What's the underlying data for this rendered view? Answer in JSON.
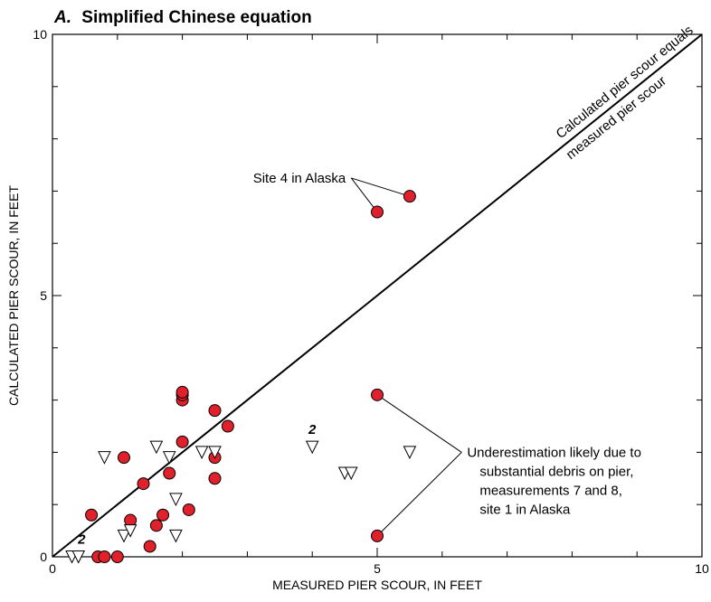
{
  "chart_data": {
    "type": "scatter",
    "title": "Simplified Chinese equation",
    "panel_letter": "A.",
    "xlabel": "MEASURED PIER SCOUR, IN FEET",
    "ylabel": "CALCULATED PIER SCOUR, IN FEET",
    "xlim": [
      0,
      10
    ],
    "ylim": [
      0,
      10
    ],
    "x_tick_labels": [
      "0",
      "5",
      "10"
    ],
    "y_tick_labels": [
      "0",
      "5",
      "10"
    ],
    "grid": false,
    "reference_line": {
      "from": [
        0,
        0
      ],
      "to": [
        10,
        10
      ],
      "label_line1": "Calculated pier scour equals",
      "label_line2": "measured pier scour"
    },
    "series": [
      {
        "marker": "circle",
        "color": "#e0202a",
        "points": [
          [
            0.6,
            0.8
          ],
          [
            0.7,
            0.0
          ],
          [
            0.8,
            0.0
          ],
          [
            1.0,
            0.0
          ],
          [
            1.1,
            1.9
          ],
          [
            1.2,
            0.7
          ],
          [
            1.4,
            1.4
          ],
          [
            1.5,
            0.2
          ],
          [
            1.6,
            0.6
          ],
          [
            1.7,
            0.8
          ],
          [
            1.8,
            1.6
          ],
          [
            2.0,
            2.2
          ],
          [
            2.0,
            3.0
          ],
          [
            2.0,
            3.1
          ],
          [
            2.0,
            3.15
          ],
          [
            2.1,
            0.9
          ],
          [
            2.5,
            2.8
          ],
          [
            2.5,
            1.9
          ],
          [
            2.5,
            1.5
          ],
          [
            2.7,
            2.5
          ],
          [
            5.0,
            6.6
          ],
          [
            5.5,
            6.9
          ],
          [
            5.0,
            3.1
          ],
          [
            5.0,
            0.4
          ]
        ]
      },
      {
        "marker": "triangle-down",
        "color": "#ffffff",
        "points": [
          [
            0.3,
            0.0
          ],
          [
            0.4,
            0.0
          ],
          [
            0.8,
            1.9
          ],
          [
            1.1,
            0.4
          ],
          [
            1.2,
            0.5
          ],
          [
            1.6,
            2.1
          ],
          [
            1.8,
            1.9
          ],
          [
            1.9,
            0.4
          ],
          [
            1.9,
            1.1
          ],
          [
            2.3,
            2.0
          ],
          [
            2.5,
            2.0
          ],
          [
            4.0,
            2.1
          ],
          [
            4.5,
            1.6
          ],
          [
            4.6,
            1.6
          ],
          [
            5.5,
            2.0
          ]
        ]
      }
    ],
    "point_count_labels": [
      {
        "text": "2",
        "x": 0.45,
        "y": 0.25
      },
      {
        "text": "2",
        "x": 4.0,
        "y": 2.35
      }
    ],
    "annotations": [
      {
        "lines": [
          "Site 4 in Alaska"
        ],
        "anchor": [
          4.6,
          7.25
        ],
        "targets": [
          [
            5.0,
            6.6
          ],
          [
            5.5,
            6.9
          ]
        ]
      },
      {
        "lines": [
          "Underestimation likely due to",
          "substantial debris on pier,",
          "measurements 7 and 8,",
          "site 1 in Alaska"
        ],
        "anchor": [
          6.3,
          2.0
        ],
        "targets": [
          [
            5.0,
            3.1
          ],
          [
            5.0,
            0.4
          ]
        ]
      }
    ]
  }
}
